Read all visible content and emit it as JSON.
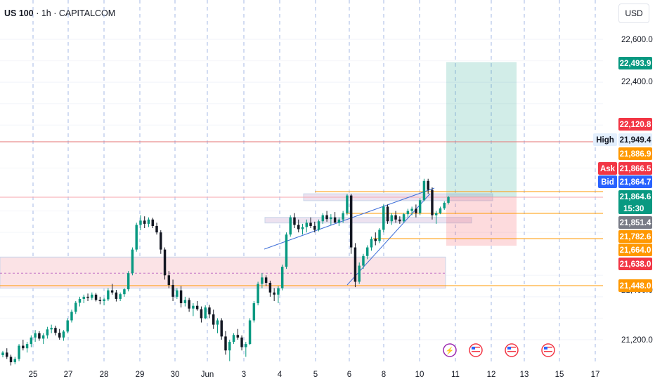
{
  "header": {
    "symbol": "US 100",
    "interval": "1h",
    "exchange": "CAPITALCOM",
    "currency": "USD"
  },
  "chart_data": {
    "type": "candlestick",
    "y_axis": {
      "min": 21100,
      "max": 22700,
      "ticks": [
        21200,
        21400,
        22400,
        22600
      ],
      "tick_labels": [
        "21,200.0",
        "21,400.0",
        "22,400.0",
        "22,600.0"
      ]
    },
    "x_axis": {
      "tick_labels": [
        "25",
        "27",
        "28",
        "29",
        "30",
        "Jun",
        "3",
        "4",
        "5",
        "6",
        "8",
        "10",
        "11",
        "12",
        "13",
        "15",
        "17"
      ]
    },
    "price_tags": [
      {
        "label": "",
        "value": "22,493.9",
        "price": 22493.9,
        "color": "#089981"
      },
      {
        "label": "",
        "value": "22,120.8",
        "price": 22120.8,
        "color": "#f23645"
      },
      {
        "label": "High",
        "value": "21,949.4",
        "price": 21949.4,
        "color": "#e3effd"
      },
      {
        "label": "",
        "value": "21,886.9",
        "price": 21886.9,
        "color": "#ff9800"
      },
      {
        "label": "Ask",
        "value": "21,866.5",
        "price": 21866.5,
        "color": "#f23645"
      },
      {
        "label": "Bid",
        "value": "21,864.7",
        "price": 21864.7,
        "color": "#2962ff"
      },
      {
        "label": "",
        "value": "21,864.6",
        "sub": "15:30",
        "price": 21864.6,
        "color": "#089981"
      },
      {
        "label": "",
        "value": "21,851.4",
        "price": 21851.4,
        "color": "#787b86"
      },
      {
        "label": "",
        "value": "21,782.6",
        "price": 21782.6,
        "color": "#ff9800"
      },
      {
        "label": "",
        "value": "21,664.0",
        "price": 21664.0,
        "color": "#ff9800"
      },
      {
        "label": "",
        "value": "21,638.0",
        "price": 21638.0,
        "color": "#f23645"
      },
      {
        "label": "",
        "value": "21,448.0",
        "price": 21448.0,
        "color": "#ff9800"
      }
    ],
    "horizontal_lines": [
      {
        "price": 21949.4,
        "color": "#e57373"
      },
      {
        "price": 21866.5,
        "color": "#f7a6ae"
      },
      {
        "price": 21886.9,
        "color": "#ff9800"
      },
      {
        "price": 21782.6,
        "color": "#ff9800"
      },
      {
        "price": 21664.0,
        "color": "#ff9800"
      },
      {
        "price": 21448.0,
        "color": "#ff9800"
      }
    ],
    "zones": [
      {
        "name": "support-zone",
        "top": 21585,
        "bottom": 21440,
        "color": "#fbe3e6"
      },
      {
        "name": "resistance-zone-upper",
        "top": 21880,
        "bottom": 21848,
        "color": "#ede2f0"
      },
      {
        "name": "resistance-zone-mid",
        "top": 21770,
        "bottom": 21744,
        "color": "#ede2f0"
      }
    ],
    "position": {
      "entry": 21864.6,
      "target": 22493.9,
      "stop": 21638.0
    },
    "candles": [
      [
        21128,
        21148,
        21118,
        21140
      ],
      [
        21140,
        21160,
        21110,
        21120
      ],
      [
        21120,
        21130,
        21080,
        21095
      ],
      [
        21095,
        21120,
        21085,
        21110
      ],
      [
        21110,
        21180,
        21100,
        21172
      ],
      [
        21172,
        21200,
        21150,
        21160
      ],
      [
        21160,
        21190,
        21140,
        21180
      ],
      [
        21180,
        21220,
        21165,
        21210
      ],
      [
        21210,
        21245,
        21190,
        21230
      ],
      [
        21230,
        21240,
        21195,
        21205
      ],
      [
        21205,
        21230,
        21180,
        21220
      ],
      [
        21220,
        21260,
        21205,
        21248
      ],
      [
        21248,
        21270,
        21230,
        21255
      ],
      [
        21255,
        21265,
        21220,
        21232
      ],
      [
        21232,
        21250,
        21200,
        21210
      ],
      [
        21210,
        21245,
        21195,
        21238
      ],
      [
        21238,
        21300,
        21230,
        21290
      ],
      [
        21290,
        21340,
        21280,
        21330
      ],
      [
        21330,
        21380,
        21320,
        21372
      ],
      [
        21372,
        21400,
        21355,
        21390
      ],
      [
        21390,
        21410,
        21370,
        21400
      ],
      [
        21400,
        21415,
        21380,
        21395
      ],
      [
        21395,
        21420,
        21385,
        21410
      ],
      [
        21410,
        21418,
        21378,
        21385
      ],
      [
        21385,
        21400,
        21365,
        21380
      ],
      [
        21380,
        21395,
        21360,
        21388
      ],
      [
        21388,
        21440,
        21380,
        21430
      ],
      [
        21430,
        21460,
        21410,
        21420
      ],
      [
        21420,
        21432,
        21378,
        21390
      ],
      [
        21390,
        21420,
        21380,
        21412
      ],
      [
        21412,
        21440,
        21400,
        21435
      ],
      [
        21435,
        21520,
        21425,
        21510
      ],
      [
        21510,
        21630,
        21500,
        21620
      ],
      [
        21620,
        21745,
        21610,
        21735
      ],
      [
        21735,
        21780,
        21710,
        21755
      ],
      [
        21755,
        21775,
        21720,
        21740
      ],
      [
        21740,
        21770,
        21725,
        21760
      ],
      [
        21760,
        21768,
        21720,
        21730
      ],
      [
        21730,
        21745,
        21690,
        21700
      ],
      [
        21700,
        21710,
        21600,
        21620
      ],
      [
        21620,
        21630,
        21480,
        21500
      ],
      [
        21500,
        21520,
        21440,
        21455
      ],
      [
        21455,
        21480,
        21380,
        21400
      ],
      [
        21400,
        21440,
        21390,
        21430
      ],
      [
        21430,
        21450,
        21350,
        21370
      ],
      [
        21370,
        21400,
        21355,
        21385
      ],
      [
        21385,
        21395,
        21330,
        21345
      ],
      [
        21345,
        21370,
        21310,
        21358
      ],
      [
        21358,
        21380,
        21335,
        21342
      ],
      [
        21342,
        21355,
        21280,
        21300
      ],
      [
        21300,
        21360,
        21295,
        21350
      ],
      [
        21350,
        21362,
        21300,
        21318
      ],
      [
        21318,
        21340,
        21250,
        21270
      ],
      [
        21270,
        21300,
        21230,
        21290
      ],
      [
        21290,
        21300,
        21200,
        21215
      ],
      [
        21215,
        21240,
        21130,
        21150
      ],
      [
        21150,
        21200,
        21100,
        21190
      ],
      [
        21190,
        21230,
        21180,
        21222
      ],
      [
        21222,
        21250,
        21200,
        21210
      ],
      [
        21210,
        21220,
        21150,
        21165
      ],
      [
        21165,
        21190,
        21120,
        21180
      ],
      [
        21180,
        21300,
        21175,
        21290
      ],
      [
        21290,
        21380,
        21280,
        21370
      ],
      [
        21370,
        21470,
        21360,
        21460
      ],
      [
        21460,
        21510,
        21440,
        21490
      ],
      [
        21490,
        21500,
        21450,
        21465
      ],
      [
        21465,
        21475,
        21400,
        21420
      ],
      [
        21420,
        21440,
        21380,
        21410
      ],
      [
        21410,
        21450,
        21370,
        21440
      ],
      [
        21440,
        21550,
        21430,
        21540
      ],
      [
        21540,
        21700,
        21530,
        21690
      ],
      [
        21690,
        21780,
        21680,
        21770
      ],
      [
        21770,
        21790,
        21720,
        21735
      ],
      [
        21735,
        21760,
        21700,
        21715
      ],
      [
        21715,
        21740,
        21690,
        21725
      ],
      [
        21725,
        21760,
        21700,
        21745
      ],
      [
        21745,
        21770,
        21720,
        21730
      ],
      [
        21730,
        21750,
        21700,
        21712
      ],
      [
        21712,
        21760,
        21705,
        21752
      ],
      [
        21752,
        21790,
        21740,
        21780
      ],
      [
        21780,
        21800,
        21750,
        21762
      ],
      [
        21762,
        21785,
        21735,
        21770
      ],
      [
        21770,
        21795,
        21750,
        21745
      ],
      [
        21745,
        21770,
        21730,
        21760
      ],
      [
        21760,
        21800,
        21745,
        21790
      ],
      [
        21790,
        21880,
        21780,
        21872
      ],
      [
        21872,
        21880,
        21600,
        21630
      ],
      [
        21630,
        21650,
        21445,
        21470
      ],
      [
        21470,
        21560,
        21460,
        21545
      ],
      [
        21545,
        21600,
        21530,
        21590
      ],
      [
        21590,
        21640,
        21575,
        21630
      ],
      [
        21630,
        21680,
        21615,
        21670
      ],
      [
        21670,
        21700,
        21640,
        21660
      ],
      [
        21660,
        21720,
        21650,
        21712
      ],
      [
        21712,
        21830,
        21700,
        21820
      ],
      [
        21820,
        21830,
        21740,
        21752
      ],
      [
        21752,
        21790,
        21735,
        21780
      ],
      [
        21780,
        21800,
        21745,
        21760
      ],
      [
        21760,
        21775,
        21740,
        21752
      ],
      [
        21752,
        21790,
        21745,
        21785
      ],
      [
        21785,
        21810,
        21770,
        21800
      ],
      [
        21800,
        21820,
        21780,
        21810
      ],
      [
        21810,
        21830,
        21770,
        21790
      ],
      [
        21790,
        21860,
        21780,
        21850
      ],
      [
        21850,
        21950,
        21845,
        21940
      ],
      [
        21940,
        21950,
        21880,
        21898
      ],
      [
        21898,
        21910,
        21760,
        21780
      ],
      [
        21780,
        21800,
        21740,
        21790
      ],
      [
        21790,
        21820,
        21785,
        21812
      ],
      [
        21812,
        21845,
        21805,
        21838
      ],
      [
        21838,
        21870,
        21830,
        21864.6
      ]
    ]
  },
  "event_icons": [
    {
      "name": "lightning-event-icon",
      "glyph": "⚡",
      "color": "#9c27b0"
    },
    {
      "name": "us-flag-event-icon",
      "glyph": "",
      "color": "#f23645"
    },
    {
      "name": "us-flag-event-icon",
      "glyph": "",
      "color": "#f23645"
    },
    {
      "name": "us-flag-event-icon",
      "glyph": "",
      "color": "#f23645"
    }
  ]
}
